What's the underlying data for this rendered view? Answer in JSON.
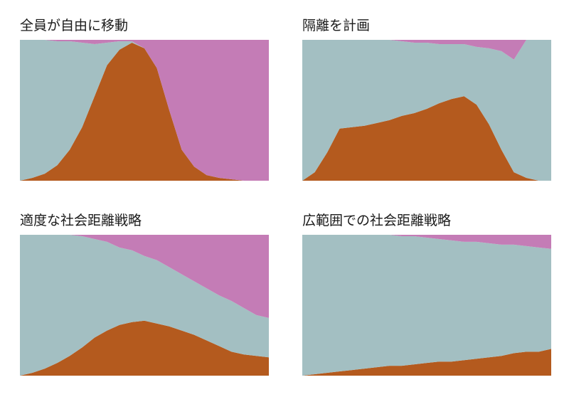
{
  "colors": {
    "susceptible": "#a3bfc2",
    "infected": "#b45a1e",
    "recovered": "#c47cb6"
  },
  "chart_data": [
    {
      "type": "area",
      "stacked": true,
      "normalized": true,
      "title": "全員が自由に移動",
      "xlabel": "",
      "ylabel": "",
      "grid": false,
      "legend": "none",
      "x": [
        0,
        0.05,
        0.1,
        0.15,
        0.2,
        0.25,
        0.3,
        0.35,
        0.4,
        0.45,
        0.5,
        0.55,
        0.6,
        0.65,
        0.7,
        0.75,
        0.8,
        0.85,
        0.9,
        0.95,
        1
      ],
      "ylim": [
        0,
        1
      ],
      "series": [
        {
          "key": "infected",
          "values": [
            0.0,
            0.02,
            0.05,
            0.11,
            0.22,
            0.38,
            0.6,
            0.82,
            0.93,
            0.98,
            0.94,
            0.8,
            0.5,
            0.22,
            0.1,
            0.04,
            0.02,
            0.01,
            0.0,
            0.0,
            0.0
          ]
        },
        {
          "key": "susceptible",
          "values": [
            1.0,
            0.98,
            0.95,
            0.88,
            0.77,
            0.6,
            0.37,
            0.16,
            0.06,
            0.01,
            0.0,
            0.0,
            0.0,
            0.0,
            0.0,
            0.0,
            0.0,
            0.0,
            0.0,
            0.0,
            0.0
          ]
        },
        {
          "key": "recovered",
          "values": [
            0.0,
            0.0,
            0.0,
            0.01,
            0.01,
            0.02,
            0.03,
            0.02,
            0.01,
            0.01,
            0.06,
            0.2,
            0.5,
            0.78,
            0.9,
            0.96,
            0.98,
            0.99,
            1.0,
            1.0,
            1.0
          ]
        }
      ]
    },
    {
      "type": "area",
      "stacked": true,
      "normalized": true,
      "title": "隔離を計画",
      "xlabel": "",
      "ylabel": "",
      "grid": false,
      "legend": "none",
      "x": [
        0,
        0.05,
        0.1,
        0.15,
        0.2,
        0.25,
        0.3,
        0.35,
        0.4,
        0.45,
        0.5,
        0.55,
        0.6,
        0.65,
        0.7,
        0.75,
        0.8,
        0.85,
        0.9,
        0.95,
        1
      ],
      "ylim": [
        0,
        1
      ],
      "series": [
        {
          "key": "infected",
          "values": [
            0.0,
            0.06,
            0.2,
            0.37,
            0.38,
            0.39,
            0.41,
            0.43,
            0.46,
            0.48,
            0.51,
            0.55,
            0.58,
            0.6,
            0.54,
            0.4,
            0.22,
            0.06,
            0.02,
            0.0,
            0.0
          ]
        },
        {
          "key": "susceptible",
          "values": [
            1.0,
            0.94,
            0.8,
            0.63,
            0.62,
            0.61,
            0.59,
            0.57,
            0.53,
            0.5,
            0.47,
            0.42,
            0.39,
            0.37,
            0.41,
            0.54,
            0.7,
            0.8,
            0.98,
            1.0,
            1.0
          ]
        },
        {
          "key": "recovered",
          "values": [
            0.0,
            0.0,
            0.0,
            0.0,
            0.0,
            0.0,
            0.0,
            0.0,
            0.01,
            0.02,
            0.02,
            0.03,
            0.03,
            0.03,
            0.05,
            0.06,
            0.08,
            0.14,
            0.0,
            0.0,
            0.0
          ]
        }
      ]
    },
    {
      "type": "area",
      "stacked": true,
      "normalized": true,
      "title": "適度な社会距離戦略",
      "xlabel": "",
      "ylabel": "",
      "grid": false,
      "legend": "none",
      "x": [
        0,
        0.05,
        0.1,
        0.15,
        0.2,
        0.25,
        0.3,
        0.35,
        0.4,
        0.45,
        0.5,
        0.55,
        0.6,
        0.65,
        0.7,
        0.75,
        0.8,
        0.85,
        0.9,
        0.95,
        1
      ],
      "ylim": [
        0,
        1
      ],
      "series": [
        {
          "key": "infected",
          "values": [
            0.0,
            0.02,
            0.05,
            0.09,
            0.14,
            0.2,
            0.27,
            0.32,
            0.36,
            0.38,
            0.39,
            0.37,
            0.35,
            0.32,
            0.29,
            0.25,
            0.21,
            0.17,
            0.15,
            0.14,
            0.13
          ]
        },
        {
          "key": "susceptible",
          "values": [
            1.0,
            0.98,
            0.95,
            0.91,
            0.86,
            0.79,
            0.7,
            0.63,
            0.55,
            0.51,
            0.46,
            0.45,
            0.42,
            0.4,
            0.38,
            0.37,
            0.36,
            0.36,
            0.33,
            0.29,
            0.28
          ]
        },
        {
          "key": "recovered",
          "values": [
            0.0,
            0.0,
            0.0,
            0.0,
            0.0,
            0.01,
            0.03,
            0.05,
            0.09,
            0.11,
            0.15,
            0.18,
            0.23,
            0.28,
            0.33,
            0.38,
            0.43,
            0.47,
            0.52,
            0.57,
            0.59
          ]
        }
      ]
    },
    {
      "type": "area",
      "stacked": true,
      "normalized": true,
      "title": "広範囲での社会距離戦略",
      "xlabel": "",
      "ylabel": "",
      "grid": false,
      "legend": "none",
      "x": [
        0,
        0.05,
        0.1,
        0.15,
        0.2,
        0.25,
        0.3,
        0.35,
        0.4,
        0.45,
        0.5,
        0.55,
        0.6,
        0.65,
        0.7,
        0.75,
        0.8,
        0.85,
        0.9,
        0.95,
        1
      ],
      "ylim": [
        0,
        1
      ],
      "series": [
        {
          "key": "infected",
          "values": [
            0.0,
            0.01,
            0.02,
            0.03,
            0.04,
            0.05,
            0.06,
            0.07,
            0.07,
            0.08,
            0.09,
            0.1,
            0.1,
            0.11,
            0.12,
            0.13,
            0.14,
            0.16,
            0.17,
            0.17,
            0.19
          ]
        },
        {
          "key": "susceptible",
          "values": [
            1.0,
            0.99,
            0.98,
            0.97,
            0.96,
            0.95,
            0.94,
            0.93,
            0.92,
            0.91,
            0.89,
            0.87,
            0.86,
            0.84,
            0.83,
            0.81,
            0.79,
            0.77,
            0.75,
            0.74,
            0.71
          ]
        },
        {
          "key": "recovered",
          "values": [
            0.0,
            0.0,
            0.0,
            0.0,
            0.0,
            0.0,
            0.0,
            0.0,
            0.01,
            0.01,
            0.02,
            0.03,
            0.04,
            0.05,
            0.05,
            0.06,
            0.07,
            0.07,
            0.08,
            0.09,
            0.1
          ]
        }
      ]
    }
  ]
}
